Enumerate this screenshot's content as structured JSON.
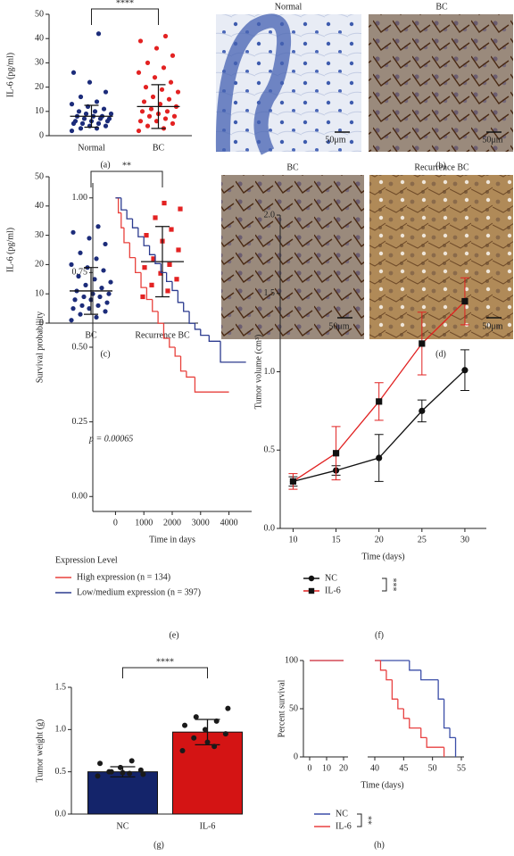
{
  "chart_data": [
    {
      "type": "dotplot",
      "caption": "(a)",
      "y_label": "IL-6 (pg/ml)",
      "ylim": [
        0,
        50
      ],
      "yticks": [
        0,
        10,
        20,
        30,
        40,
        50
      ],
      "categories": [
        "Normal",
        "BC"
      ],
      "colors": [
        "#1c2c7a",
        "#e32222"
      ],
      "markers": [
        "circle",
        "circle"
      ],
      "values": [
        [
          2,
          3,
          3,
          4,
          4,
          5,
          5,
          5,
          6,
          6,
          6,
          7,
          7,
          7,
          8,
          8,
          8,
          9,
          9,
          10,
          10,
          11,
          12,
          13,
          14,
          16,
          18,
          22,
          26,
          42
        ],
        [
          2,
          3,
          4,
          5,
          6,
          6,
          7,
          8,
          8,
          9,
          10,
          10,
          11,
          12,
          13,
          14,
          15,
          16,
          18,
          19,
          20,
          22,
          24,
          26,
          28,
          30,
          33,
          36,
          39,
          41
        ]
      ],
      "mean": [
        8,
        12
      ],
      "sd": [
        4.5,
        9
      ],
      "significance": "****"
    },
    {
      "type": "dotplot",
      "caption": "(c)",
      "y_label": "IL-6 (pg/ml)",
      "ylim": [
        0,
        50
      ],
      "yticks": [
        0,
        10,
        20,
        30,
        40,
        50
      ],
      "categories": [
        "BC",
        "Recurrence BC"
      ],
      "colors": [
        "#1c2c7a",
        "#e32222"
      ],
      "markers": [
        "circle",
        "square"
      ],
      "values": [
        [
          1,
          2,
          3,
          4,
          5,
          5,
          6,
          6,
          7,
          8,
          8,
          9,
          9,
          10,
          10,
          11,
          12,
          13,
          14,
          15,
          16,
          18,
          19,
          20,
          22,
          24,
          27,
          29,
          31,
          33
        ],
        [
          9,
          11,
          13,
          15,
          17,
          19,
          20,
          22,
          25,
          28,
          30,
          32,
          36,
          39,
          41
        ]
      ],
      "mean": [
        11,
        21
      ],
      "sd": [
        8,
        12
      ],
      "significance": "**"
    },
    {
      "type": "step",
      "caption": "(e)",
      "y_label": "Survival probability",
      "x_label": "Time in days",
      "xlim": [
        -800,
        4800
      ],
      "xticks": [
        0,
        1000,
        2000,
        3000,
        4000
      ],
      "ylim": [
        -0.05,
        1.05
      ],
      "yticks": [
        {
          "value": 0,
          "label": "0.00"
        },
        {
          "value": 0.25,
          "label": "0.25"
        },
        {
          "value": 0.5,
          "label": "0.50"
        },
        {
          "value": 0.75,
          "label": "0.75"
        },
        {
          "value": 1,
          "label": "1.00"
        }
      ],
      "annotation": "p = 0.00065",
      "legend_title": "Expression Level",
      "series": [
        {
          "name": "High expression (n = 134)",
          "color": "#e8413c",
          "x": [
            0,
            100,
            200,
            300,
            500,
            700,
            900,
            1100,
            1300,
            1500,
            1700,
            1900,
            2100,
            2300,
            2500,
            2800,
            4000
          ],
          "values": [
            1,
            0.95,
            0.9,
            0.85,
            0.8,
            0.75,
            0.7,
            0.66,
            0.62,
            0.58,
            0.53,
            0.5,
            0.47,
            0.42,
            0.4,
            0.35,
            0.35
          ]
        },
        {
          "name": "Low/medium expression (n = 397)",
          "color": "#2c3b8f",
          "x": [
            0,
            200,
            400,
            600,
            800,
            1000,
            1200,
            1400,
            1600,
            1800,
            2000,
            2200,
            2400,
            2600,
            2800,
            3000,
            3300,
            3700,
            4600
          ],
          "values": [
            1,
            0.96,
            0.93,
            0.9,
            0.87,
            0.84,
            0.81,
            0.78,
            0.75,
            0.72,
            0.69,
            0.65,
            0.62,
            0.58,
            0.56,
            0.54,
            0.52,
            0.45,
            0.45
          ]
        }
      ]
    },
    {
      "type": "line",
      "caption": "(f)",
      "y_label": "Tumor volume (cm³)",
      "x_label": "Time (days)",
      "x": [
        10,
        15,
        20,
        25,
        30
      ],
      "xlim": [
        8.5,
        32.5
      ],
      "xticks": [
        10,
        15,
        20,
        25,
        30
      ],
      "ylim": [
        0,
        2
      ],
      "yticks": [
        {
          "value": 0,
          "label": "0.0"
        },
        {
          "value": 0.5,
          "label": "0.5"
        },
        {
          "value": 1,
          "label": "1.0"
        },
        {
          "value": 1.5,
          "label": "1.5"
        },
        {
          "value": 2,
          "label": "2.0"
        }
      ],
      "significance": "***",
      "series": [
        {
          "name": "NC",
          "color": "#111111",
          "marker": "circle",
          "values": [
            0.3,
            0.37,
            0.45,
            0.75,
            1.01
          ],
          "errors": [
            0.03,
            0.03,
            0.15,
            0.07,
            0.13
          ]
        },
        {
          "name": "IL-6",
          "color": "#e02020",
          "marker": "square",
          "values": [
            0.3,
            0.48,
            0.81,
            1.18,
            1.45
          ],
          "errors": [
            0.05,
            0.17,
            0.12,
            0.2,
            0.15
          ]
        }
      ]
    },
    {
      "type": "bar",
      "caption": "(g)",
      "y_label": "Tumor weight (g)",
      "ylim": [
        0,
        1.5
      ],
      "yticks": [
        {
          "value": 0,
          "label": "0.0"
        },
        {
          "value": 0.5,
          "label": "0.5"
        },
        {
          "value": 1,
          "label": "1.0"
        },
        {
          "value": 1.5,
          "label": "1.5"
        }
      ],
      "categories": [
        "NC",
        "IL-6"
      ],
      "colors": [
        "#14246a",
        "#d41414"
      ],
      "values": [
        0.5,
        0.97
      ],
      "errors": [
        0.06,
        0.15
      ],
      "points": [
        [
          0.45,
          0.48,
          0.5,
          0.52,
          0.55,
          0.6,
          0.63,
          0.5,
          0.47,
          0.49
        ],
        [
          0.75,
          0.8,
          0.9,
          0.95,
          1,
          1.05,
          1.1,
          1.15,
          1.25,
          0.85
        ]
      ],
      "significance": "****"
    },
    {
      "type": "step",
      "caption": "(h)",
      "y_label": "Percent survival",
      "x_label": "Time (days)",
      "xlim": [
        0,
        55
      ],
      "xbreak": [
        20,
        40
      ],
      "xticks": [
        0,
        10,
        20,
        40,
        45,
        50,
        55
      ],
      "ylim": [
        0,
        100
      ],
      "yticks": [
        0,
        50,
        100
      ],
      "significance": "**",
      "series": [
        {
          "name": "NC",
          "color": "#3b4ea8",
          "x": [
            0,
            46,
            48,
            51,
            52,
            53,
            54
          ],
          "values": [
            100,
            90,
            80,
            60,
            30,
            20,
            0
          ]
        },
        {
          "name": "IL-6",
          "color": "#e84040",
          "x": [
            0,
            41,
            42,
            43,
            44,
            45,
            46,
            48,
            49,
            52
          ],
          "values": [
            100,
            90,
            80,
            60,
            50,
            40,
            30,
            20,
            10,
            0
          ]
        }
      ]
    }
  ],
  "images": [
    {
      "caption": "(b)",
      "tiles": [
        {
          "label": "Normal",
          "scale_bar": "50μm"
        },
        {
          "label": "BC",
          "scale_bar": "50μm"
        }
      ]
    },
    {
      "caption": "(d)",
      "tiles": [
        {
          "label": "BC",
          "scale_bar": "50μm"
        },
        {
          "label": "Recurrence BC",
          "scale_bar": "50μm"
        }
      ]
    }
  ]
}
